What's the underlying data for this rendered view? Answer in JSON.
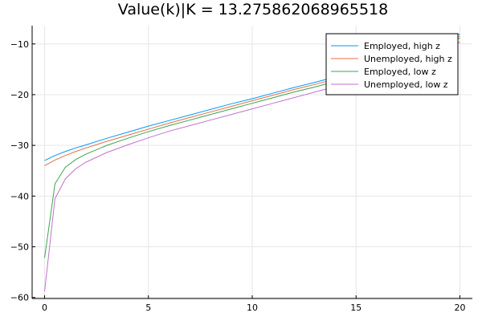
{
  "chart_data": {
    "type": "line",
    "title": "Value(k)|K = 13.275862068965518",
    "xlabel": "",
    "ylabel": "",
    "xlim": [
      -0.6,
      20.6
    ],
    "ylim": [
      -60.2,
      -6.4
    ],
    "xticks": [
      0,
      5,
      10,
      15,
      20
    ],
    "yticks": [
      -60,
      -50,
      -40,
      -30,
      -20,
      -10
    ],
    "ytick_labels": [
      "−60",
      "−50",
      "−40",
      "−30",
      "−20",
      "−10"
    ],
    "xtick_labels": [
      "0",
      "5",
      "10",
      "15",
      "20"
    ],
    "grid": true,
    "legend_position": "top-right",
    "x": [
      0,
      0.5,
      1,
      1.5,
      2,
      3,
      4,
      5,
      6,
      7,
      8,
      9,
      10,
      11,
      12,
      13,
      14,
      15,
      16,
      17,
      18,
      19,
      20
    ],
    "series": [
      {
        "name": "Employed, high z",
        "color": "#009AFA",
        "values": [
          -33.0,
          -32.0,
          -31.2,
          -30.5,
          -29.9,
          -28.6,
          -27.4,
          -26.2,
          -25.1,
          -24.0,
          -22.9,
          -21.8,
          -20.8,
          -19.7,
          -18.6,
          -17.6,
          -16.5,
          -15.5,
          -14.4,
          -13.3,
          -12.1,
          -10.5,
          -8.0
        ]
      },
      {
        "name": "Unemployed, high z",
        "color": "#E36F47",
        "values": [
          -34.0,
          -32.9,
          -32.0,
          -31.2,
          -30.5,
          -29.2,
          -28.0,
          -26.8,
          -25.6,
          -24.5,
          -23.4,
          -22.3,
          -21.2,
          -20.1,
          -19.0,
          -18.0,
          -16.9,
          -15.8,
          -14.8,
          -13.7,
          -12.5,
          -10.9,
          -8.4
        ]
      },
      {
        "name": "Employed, low z",
        "color": "#3EA44E",
        "values": [
          -52.2,
          -37.6,
          -34.3,
          -32.8,
          -31.7,
          -30.0,
          -28.6,
          -27.3,
          -26.1,
          -25.0,
          -23.9,
          -22.8,
          -21.7,
          -20.6,
          -19.5,
          -18.5,
          -17.4,
          -16.3,
          -15.2,
          -14.1,
          -12.9,
          -11.3,
          -8.8
        ]
      },
      {
        "name": "Unemployed, low z",
        "color": "#C271D2",
        "values": [
          -58.8,
          -40.5,
          -36.6,
          -34.6,
          -33.3,
          -31.4,
          -29.9,
          -28.5,
          -27.2,
          -26.1,
          -25.0,
          -23.9,
          -22.8,
          -21.7,
          -20.6,
          -19.5,
          -18.4,
          -17.3,
          -16.2,
          -15.1,
          -13.9,
          -12.3,
          -9.6
        ]
      }
    ]
  }
}
